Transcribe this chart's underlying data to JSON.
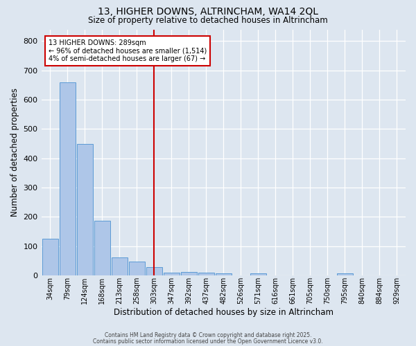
{
  "title1": "13, HIGHER DOWNS, ALTRINCHAM, WA14 2QL",
  "title2": "Size of property relative to detached houses in Altrincham",
  "xlabel": "Distribution of detached houses by size in Altrincham",
  "ylabel": "Number of detached properties",
  "categories": [
    "34sqm",
    "79sqm",
    "124sqm",
    "168sqm",
    "213sqm",
    "258sqm",
    "303sqm",
    "347sqm",
    "392sqm",
    "437sqm",
    "482sqm",
    "526sqm",
    "571sqm",
    "616sqm",
    "661sqm",
    "705sqm",
    "750sqm",
    "795sqm",
    "840sqm",
    "884sqm",
    "929sqm"
  ],
  "values": [
    125,
    660,
    450,
    188,
    62,
    48,
    28,
    10,
    12,
    10,
    8,
    0,
    8,
    0,
    0,
    0,
    0,
    8,
    0,
    0,
    0
  ],
  "bar_color": "#aec6e8",
  "bar_edge_color": "#5b9bd5",
  "bg_color": "#dde6f0",
  "fig_bg_color": "#dde6f0",
  "grid_color": "#ffffff",
  "vline_x": 6,
  "vline_color": "#cc0000",
  "legend_title": "13 HIGHER DOWNS: 289sqm",
  "legend_line1": "← 96% of detached houses are smaller (1,514)",
  "legend_line2": "4% of semi-detached houses are larger (67) →",
  "legend_box_color": "#cc0000",
  "ylim": [
    0,
    840
  ],
  "yticks": [
    0,
    100,
    200,
    300,
    400,
    500,
    600,
    700,
    800
  ],
  "footer1": "Contains HM Land Registry data © Crown copyright and database right 2025.",
  "footer2": "Contains public sector information licensed under the Open Government Licence v3.0."
}
